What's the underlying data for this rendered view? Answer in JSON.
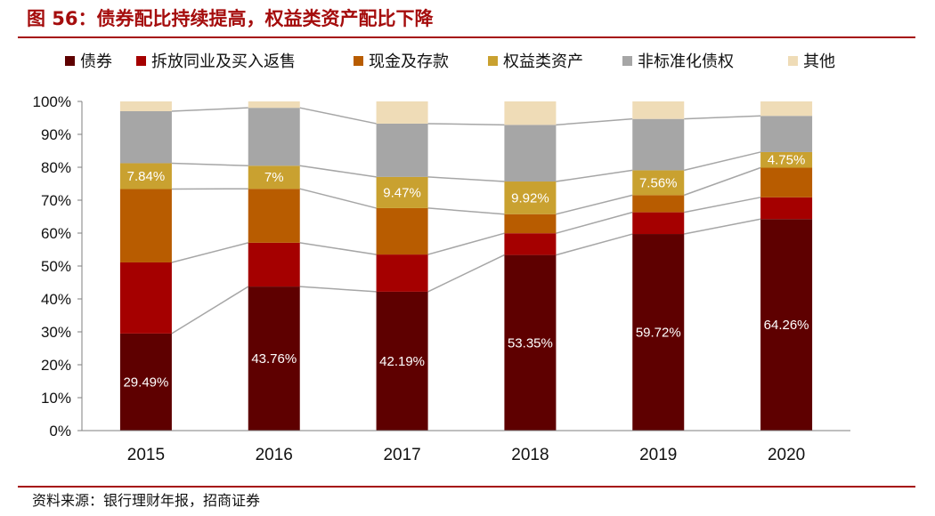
{
  "figure": {
    "title": "图 56：债券配比持续提高，权益类资产配比下降",
    "source": "资料来源：银行理财年报，招商证券"
  },
  "chart_data": {
    "type": "bar",
    "stacked": true,
    "percent": true,
    "title": "债券配比持续提高，权益类资产配比下降",
    "xlabel": "",
    "ylabel": "",
    "ylim": [
      0,
      100
    ],
    "yticks": [
      "0%",
      "10%",
      "20%",
      "30%",
      "40%",
      "50%",
      "60%",
      "70%",
      "80%",
      "90%",
      "100%"
    ],
    "legend_position": "top",
    "categories": [
      "2015",
      "2016",
      "2017",
      "2018",
      "2019",
      "2020"
    ],
    "series": [
      {
        "name": "债券",
        "color": "#5e0000",
        "values": [
          29.49,
          43.76,
          42.19,
          53.35,
          59.72,
          64.26
        ],
        "labels": [
          "29.49%",
          "43.76%",
          "42.19%",
          "53.35%",
          "59.72%",
          "64.26%"
        ]
      },
      {
        "name": "拆放同业及买入返售",
        "color": "#a50000",
        "values": [
          21.6,
          13.3,
          11.3,
          6.6,
          6.6,
          6.6
        ],
        "labels": []
      },
      {
        "name": "现金及存款",
        "color": "#b85c00",
        "values": [
          22.3,
          16.4,
          14.1,
          5.8,
          5.2,
          9.0
        ],
        "labels": []
      },
      {
        "name": "权益类资产",
        "color": "#c9a130",
        "values": [
          7.84,
          7.0,
          9.47,
          9.92,
          7.56,
          4.75
        ],
        "labels": [
          "7.84%",
          "7%",
          "9.47%",
          "9.92%",
          "7.56%",
          "4.75%"
        ]
      },
      {
        "name": "非标准化债权",
        "color": "#a6a6a6",
        "values": [
          15.8,
          17.6,
          16.2,
          17.2,
          15.6,
          11.0
        ],
        "labels": []
      },
      {
        "name": "其他",
        "color": "#efdcb7",
        "values": [
          2.97,
          1.94,
          6.74,
          7.13,
          5.32,
          4.39
        ],
        "labels": []
      }
    ]
  }
}
